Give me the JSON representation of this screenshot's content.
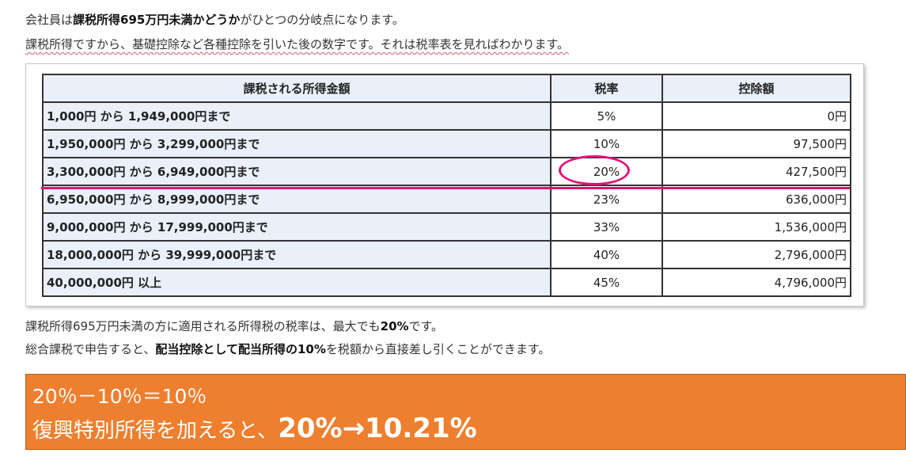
{
  "intro": {
    "line1_pre": "会社員は",
    "line1_bold": "課税所得695万円未満かどうか",
    "line1_post": "がひとつの分岐点になります。",
    "line2": "課税所得ですから、基礎控除など各種控除を引いた後の数字です。それは税率表を見ればわかります。"
  },
  "table": {
    "headers": [
      "課税される所得金額",
      "税率",
      "控除額"
    ],
    "rows": [
      [
        "1,000円 から 1,949,000円まで",
        "5%",
        "0円"
      ],
      [
        "1,950,000円 から 3,299,000円まで",
        "10%",
        "97,500円"
      ],
      [
        "3,300,000円 から 6,949,000円まで",
        "20%",
        "427,500円"
      ],
      [
        "6,950,000円 から 8,999,000円まで",
        "23%",
        "636,000円"
      ],
      [
        "9,000,000円 から 17,999,000円まで",
        "33%",
        "1,536,000円"
      ],
      [
        "18,000,000円 から 39,999,000円まで",
        "40%",
        "2,796,000円"
      ],
      [
        "40,000,000円 以上",
        "45%",
        "4,796,000円"
      ]
    ],
    "highlight_color": "#e0147a"
  },
  "after": {
    "line3_pre": "課税所得695万円未満の方に適用される所得税の税率は、最大でも",
    "line3_bold": "20%",
    "line3_post": "です。",
    "line4_pre": "総合課税で申告すると、",
    "line4_bold": "配当控除として配当所得の10%",
    "line4_post": "を税額から直接差し引くことができます。"
  },
  "callout": {
    "line1": "20％－10％＝10％",
    "line2_pre": "復興特別所得を加えると、",
    "line2_bold": "20%→10.21%",
    "background": "#ee7f2f"
  }
}
